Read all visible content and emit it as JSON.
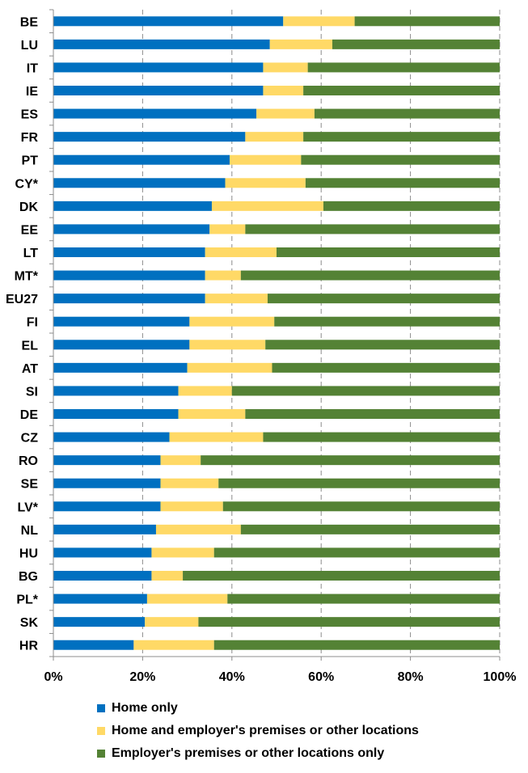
{
  "chart_data": {
    "type": "bar",
    "orientation": "horizontal",
    "stacked": true,
    "categories": [
      "BE",
      "LU",
      "IT",
      "IE",
      "ES",
      "FR",
      "PT",
      "CY*",
      "DK",
      "EE",
      "LT",
      "MT*",
      "EU27",
      "FI",
      "EL",
      "AT",
      "SI",
      "DE",
      "CZ",
      "RO",
      "SE",
      "LV*",
      "NL",
      "HU",
      "BG",
      "PL*",
      "SK",
      "HR"
    ],
    "series": [
      {
        "name": "Home only",
        "color": "#0070C0",
        "values": [
          51.5,
          48.5,
          47.0,
          47.0,
          45.5,
          43.0,
          39.5,
          38.5,
          35.5,
          35.0,
          34.0,
          34.0,
          34.0,
          30.5,
          30.5,
          30.0,
          28.0,
          28.0,
          26.0,
          24.0,
          24.0,
          24.0,
          23.0,
          22.0,
          22.0,
          21.0,
          20.5,
          18.0
        ]
      },
      {
        "name": "Home and employer's premises or other locations",
        "color": "#FFD966",
        "values": [
          16.0,
          14.0,
          10.0,
          9.0,
          13.0,
          13.0,
          16.0,
          18.0,
          25.0,
          8.0,
          16.0,
          8.0,
          14.0,
          19.0,
          17.0,
          19.0,
          12.0,
          15.0,
          21.0,
          9.0,
          13.0,
          14.0,
          19.0,
          14.0,
          7.0,
          18.0,
          12.0,
          18.0
        ]
      },
      {
        "name": "Employer's premises or other locations only",
        "color": "#548235",
        "values": [
          32.5,
          37.5,
          43.0,
          44.0,
          41.5,
          44.0,
          44.5,
          43.5,
          39.5,
          57.0,
          50.0,
          58.0,
          52.0,
          50.5,
          52.5,
          51.0,
          60.0,
          57.0,
          53.0,
          67.0,
          63.0,
          62.0,
          58.0,
          64.0,
          71.0,
          61.0,
          67.5,
          64.0
        ]
      }
    ],
    "x_ticks": [
      "0%",
      "20%",
      "40%",
      "60%",
      "80%",
      "100%"
    ],
    "xlim": [
      0,
      100
    ],
    "xlabel": "",
    "ylabel": "",
    "title": "",
    "grid": "vertical-dashed",
    "legend_position": "bottom"
  }
}
